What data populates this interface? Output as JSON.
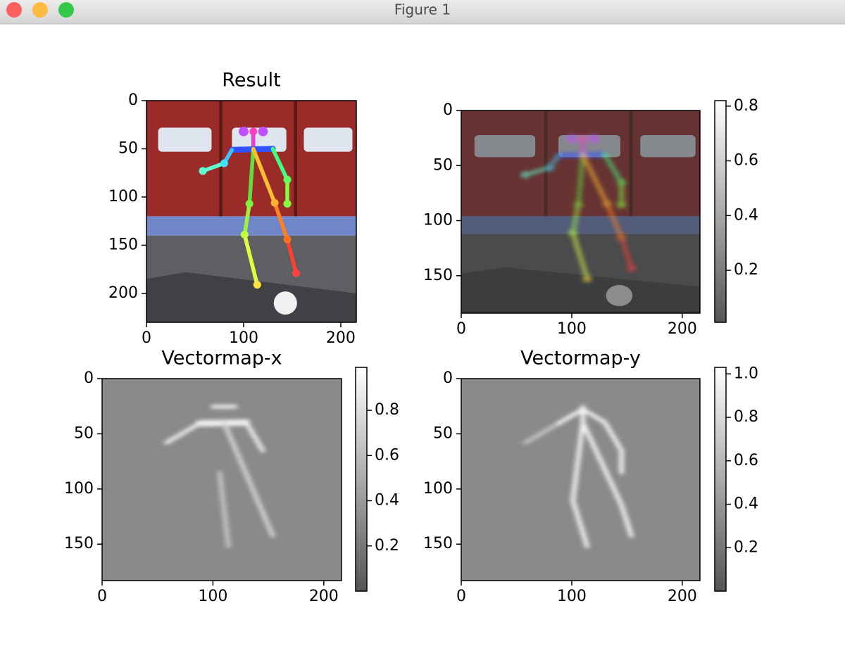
{
  "window": {
    "title": "Figure 1"
  },
  "chart_data": [
    {
      "type": "image",
      "title": "Result",
      "xlim": [
        0,
        216
      ],
      "ylim": [
        230,
        0
      ],
      "xticks": [
        0,
        100,
        200
      ],
      "yticks": [
        0,
        50,
        100,
        150,
        200
      ]
    },
    {
      "type": "image",
      "xlim": [
        0,
        216
      ],
      "ylim": [
        184,
        0
      ],
      "xticks": [
        0,
        100,
        200
      ],
      "yticks": [
        0,
        50,
        100,
        150
      ],
      "colorbar": {
        "clim": [
          0.01,
          0.82
        ],
        "ticks": [
          0.2,
          0.4,
          0.6,
          0.8
        ]
      }
    },
    {
      "type": "image",
      "title": "Vectormap-x",
      "xlim": [
        0,
        216
      ],
      "ylim": [
        183,
        0
      ],
      "xticks": [
        0,
        100,
        200
      ],
      "yticks": [
        0,
        50,
        100,
        150
      ],
      "colorbar": {
        "clim": [
          0.0,
          0.99
        ],
        "ticks": [
          0.2,
          0.4,
          0.6,
          0.8
        ]
      }
    },
    {
      "type": "image",
      "title": "Vectormap-y",
      "xlim": [
        0,
        216
      ],
      "ylim": [
        183,
        0
      ],
      "xticks": [
        0,
        100,
        200
      ],
      "yticks": [
        0,
        50,
        100,
        150
      ],
      "colorbar": {
        "clim": [
          0.0,
          1.03
        ],
        "ticks": [
          0.2,
          0.4,
          0.6,
          0.8,
          {
            "value": 1.0,
            "label": "1.0"
          }
        ]
      }
    }
  ]
}
